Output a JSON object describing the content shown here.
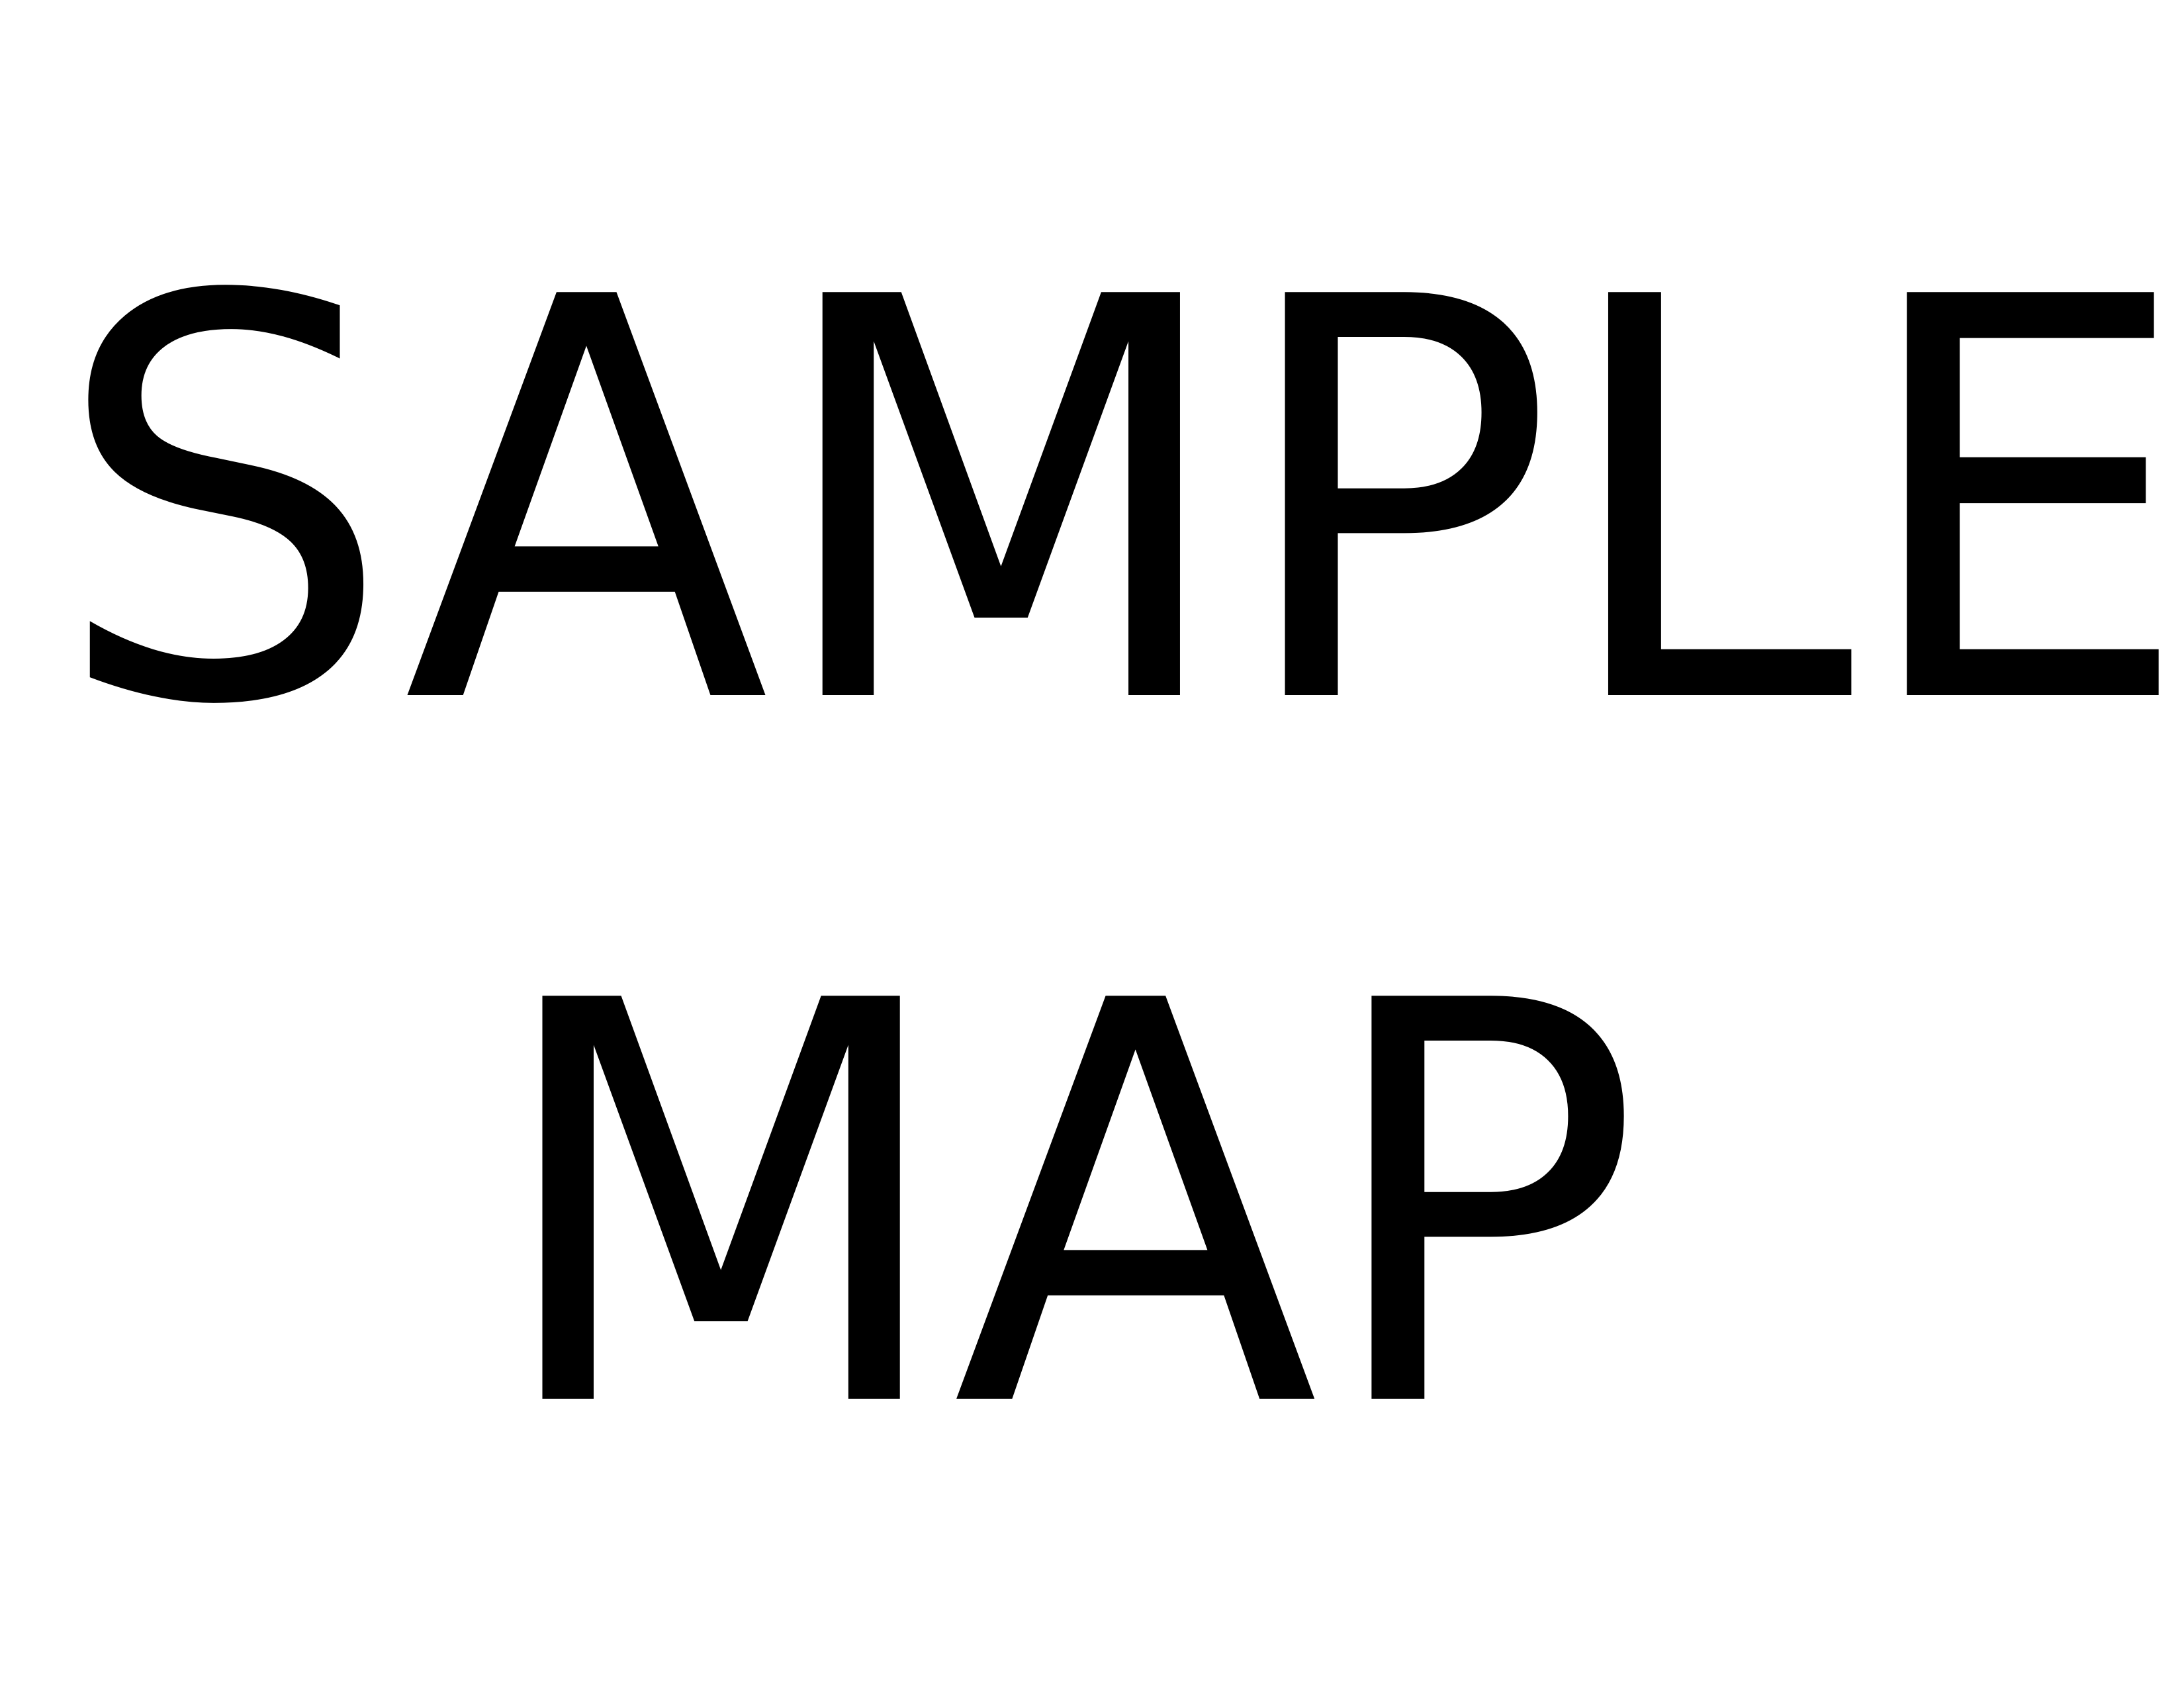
{
  "page": {
    "background_color": "#ffffff",
    "text_color": "#000000"
  },
  "text": {
    "line1": "SAMPLE",
    "line2": "MAP"
  }
}
